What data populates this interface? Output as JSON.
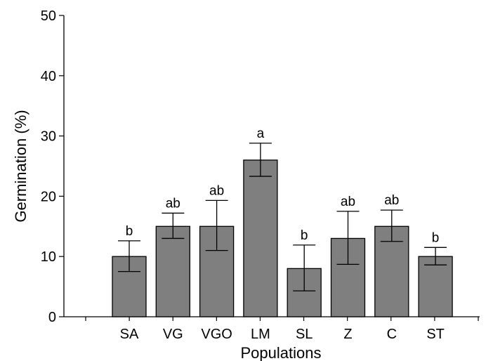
{
  "chart_data": {
    "type": "bar",
    "title": "",
    "xlabel": "Populations",
    "ylabel": "Germination (%)",
    "ylim": [
      0,
      50
    ],
    "yticks": [
      0,
      10,
      20,
      30,
      40,
      50
    ],
    "categories": [
      "SA",
      "VG",
      "VGO",
      "LM",
      "SL",
      "Z",
      "C",
      "ST"
    ],
    "values": [
      10,
      15,
      15,
      26,
      8,
      13,
      15,
      10
    ],
    "error_low": [
      7.5,
      13,
      11,
      23.3,
      4.3,
      8.7,
      12.5,
      8.6
    ],
    "error_high": [
      12.6,
      17.2,
      19.3,
      28.8,
      11.9,
      17.5,
      17.7,
      11.5
    ],
    "significance_labels": [
      "b",
      "ab",
      "ab",
      "a",
      "b",
      "ab",
      "ab",
      "b"
    ],
    "colors": {
      "bar": "#7f7f7f",
      "outline": "#000000"
    },
    "grid": false,
    "legend": "none"
  }
}
